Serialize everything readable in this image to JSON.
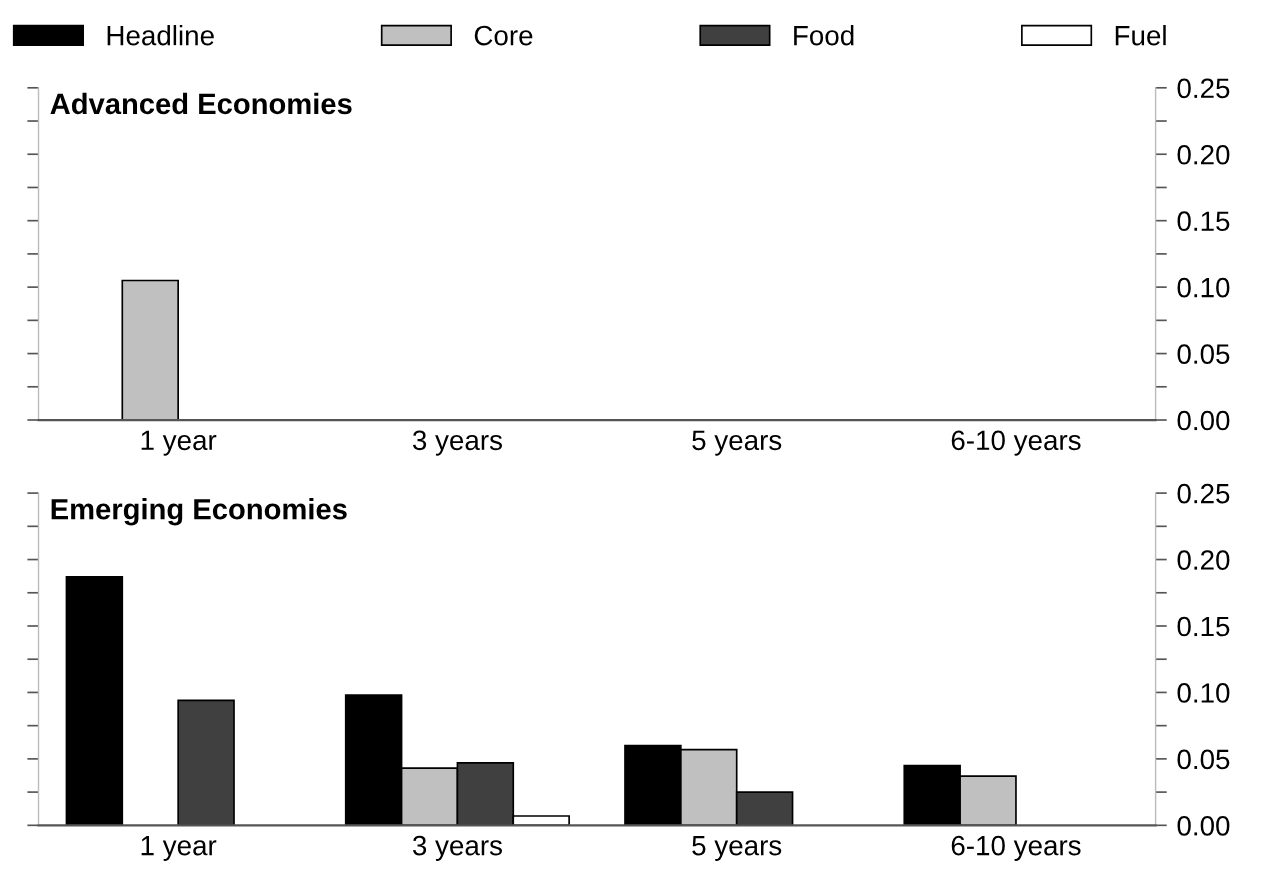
{
  "chart_data": [
    {
      "type": "bar",
      "title": "Advanced Economies",
      "categories": [
        "1 year",
        "3 years",
        "5 years",
        "6-10 years"
      ],
      "series": [
        {
          "name": "Headline",
          "color": "#000000",
          "values": [
            null,
            null,
            null,
            null
          ]
        },
        {
          "name": "Core",
          "color": "#c0c0c0",
          "values": [
            0.105,
            null,
            null,
            null
          ]
        },
        {
          "name": "Food",
          "color": "#404040",
          "values": [
            null,
            null,
            null,
            null
          ]
        },
        {
          "name": "Fuel",
          "color": "#ffffff",
          "values": [
            null,
            null,
            null,
            null
          ]
        }
      ],
      "ylim": [
        0,
        0.25
      ],
      "yticks": [
        {
          "value": 0,
          "label": "0.00"
        },
        {
          "value": 0.025,
          "label": null
        },
        0.05,
        {
          "value": 0.075,
          "label": null
        },
        {
          "value": 0.1,
          "label": "0.10"
        },
        {
          "value": 0.125,
          "label": null
        },
        0.15,
        {
          "value": 0.175,
          "label": null
        },
        {
          "value": 0.2,
          "label": "0.20"
        },
        {
          "value": 0.225,
          "label": null
        },
        0.25
      ],
      "legend": "top",
      "grid": false
    },
    {
      "type": "bar",
      "title": "Emerging Economies",
      "categories": [
        "1 year",
        "3 years",
        "5 years",
        "6-10 years"
      ],
      "series": [
        {
          "color": "#000000",
          "values": [
            0.187,
            0.098,
            0.06,
            0.045
          ]
        },
        {
          "color": "#c0c0c0",
          "values": [
            null,
            0.043,
            0.057,
            0.037
          ]
        },
        {
          "color": "#404040",
          "values": [
            0.094,
            0.047,
            0.025,
            null
          ]
        },
        {
          "color": "#ffffff",
          "values": [
            null,
            0.007,
            null,
            null
          ]
        }
      ],
      "ylim": [
        0,
        0.25
      ],
      "yticks": [
        {
          "value": 0,
          "label": "0.00"
        },
        {
          "value": 0.025,
          "label": null
        },
        0.05,
        {
          "value": 0.075,
          "label": null
        },
        {
          "value": 0.1,
          "label": "0.10"
        },
        {
          "value": 0.125,
          "label": null
        },
        0.15,
        {
          "value": 0.175,
          "label": null
        },
        {
          "value": 0.2,
          "label": "0.20"
        },
        {
          "value": 0.225,
          "label": null
        },
        0.25
      ],
      "grid": false
    }
  ]
}
